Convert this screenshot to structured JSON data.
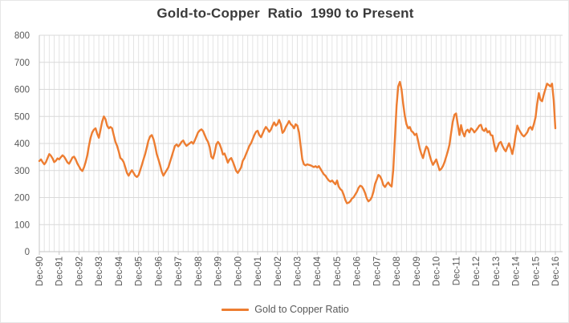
{
  "chart_data": {
    "type": "line",
    "title": "Gold-to-Copper  Ratio  1990 to Present",
    "legend": "Gold to Copper Ratio",
    "series_name": "Gold to Copper Ratio",
    "x_frequency": "monthly",
    "x_range": [
      "Dec-90",
      "Dec-16"
    ],
    "categories": [
      "Dec-90",
      "Dec-91",
      "Dec-92",
      "Dec-93",
      "Dec-94",
      "Dec-95",
      "Dec-96",
      "Dec-97",
      "Dec-98",
      "Dec-99",
      "Dec-00",
      "Dec-01",
      "Dec-02",
      "Dec-03",
      "Dec-04",
      "Dec-05",
      "Dec-06",
      "Dec-07",
      "Dec-08",
      "Dec-09",
      "Dec-10",
      "Dec-11",
      "Dec-12",
      "Dec-13",
      "Dec-14",
      "Dec-15",
      "Dec-16"
    ],
    "values": [
      335,
      341,
      331,
      323,
      331,
      346,
      361,
      355,
      345,
      331,
      336,
      345,
      341,
      349,
      356,
      351,
      341,
      330,
      325,
      336,
      348,
      351,
      341,
      326,
      315,
      304,
      298,
      311,
      331,
      356,
      391,
      421,
      441,
      451,
      456,
      436,
      421,
      451,
      481,
      500,
      490,
      466,
      456,
      461,
      456,
      431,
      406,
      391,
      371,
      346,
      341,
      331,
      311,
      291,
      281,
      292,
      301,
      291,
      281,
      276,
      283,
      301,
      321,
      341,
      361,
      386,
      411,
      426,
      431,
      416,
      391,
      361,
      341,
      321,
      296,
      281,
      291,
      301,
      311,
      331,
      351,
      371,
      391,
      396,
      389,
      396,
      406,
      411,
      399,
      391,
      396,
      401,
      406,
      399,
      411,
      426,
      441,
      448,
      452,
      446,
      431,
      416,
      406,
      386,
      351,
      344,
      366,
      396,
      406,
      398,
      381,
      359,
      363,
      346,
      329,
      341,
      346,
      333,
      316,
      299,
      291,
      301,
      311,
      336,
      346,
      361,
      376,
      391,
      401,
      416,
      431,
      443,
      447,
      431,
      423,
      436,
      451,
      461,
      453,
      443,
      451,
      466,
      478,
      466,
      472,
      487,
      471,
      439,
      446,
      461,
      471,
      483,
      471,
      466,
      456,
      471,
      466,
      441,
      391,
      341,
      323,
      319,
      323,
      321,
      319,
      316,
      313,
      316,
      311,
      316,
      306,
      296,
      286,
      281,
      271,
      263,
      259,
      263,
      256,
      249,
      263,
      241,
      231,
      226,
      211,
      191,
      179,
      181,
      186,
      196,
      201,
      211,
      221,
      236,
      244,
      241,
      231,
      216,
      196,
      186,
      191,
      201,
      221,
      251,
      266,
      284,
      279,
      266,
      246,
      239,
      249,
      256,
      246,
      241,
      301,
      421,
      541,
      611,
      628,
      601,
      546,
      501,
      471,
      456,
      461,
      446,
      441,
      431,
      436,
      411,
      381,
      361,
      346,
      371,
      389,
      381,
      356,
      336,
      321,
      331,
      341,
      321,
      301,
      306,
      316,
      331,
      351,
      371,
      396,
      441,
      481,
      506,
      511,
      471,
      431,
      468,
      441,
      426,
      446,
      451,
      441,
      456,
      451,
      441,
      448,
      456,
      466,
      469,
      451,
      446,
      456,
      441,
      446,
      431,
      429,
      396,
      371,
      386,
      401,
      406,
      391,
      379,
      371,
      386,
      401,
      381,
      361,
      391,
      431,
      466,
      451,
      441,
      431,
      426,
      433,
      441,
      456,
      461,
      451,
      471,
      496,
      546,
      586,
      561,
      556,
      581,
      601,
      621,
      616,
      611,
      621,
      561,
      456
    ],
    "ylim": [
      0,
      800
    ],
    "y_ticks": [
      0,
      100,
      200,
      300,
      400,
      500,
      600,
      700,
      800
    ],
    "grid": "horizontal major every 100, vertical minor quarterly",
    "legend_position": "bottom"
  },
  "colors": {
    "line": "#ED7D31",
    "title_text": "#3a3a3a",
    "axis_text": "#595959",
    "major_gridline": "#D9D9D9",
    "minor_gridline": "#E4E4E4",
    "axis_line": "#C6C6C6",
    "background": "#FFFFFF"
  }
}
